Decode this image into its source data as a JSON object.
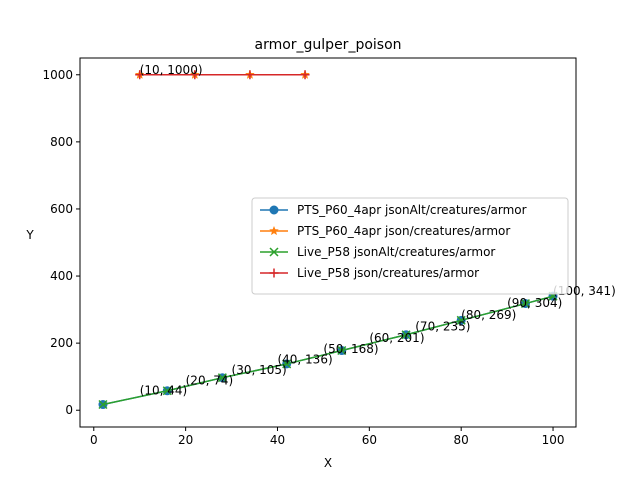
{
  "chart_data": {
    "type": "line",
    "title": "armor_gulper_poison",
    "xlabel": "X",
    "ylabel": "Y",
    "xlim": [
      -3,
      105
    ],
    "ylim": [
      -50,
      1050
    ],
    "xticks": [
      0,
      20,
      40,
      60,
      80,
      100
    ],
    "yticks": [
      0,
      200,
      400,
      600,
      800,
      1000
    ],
    "legend_position": "center-right",
    "grid": false,
    "series": [
      {
        "name": "PTS_P60_4apr jsonAlt/creatures/armor",
        "color": "#1f77b4",
        "marker": "circle",
        "x": [
          2,
          16,
          28,
          42,
          54,
          68,
          80,
          94,
          100
        ],
        "y": [
          17,
          58,
          97,
          138,
          178,
          225,
          268,
          318,
          340
        ]
      },
      {
        "name": "PTS_P60_4apr json/creatures/armor",
        "color": "#ff7f0e",
        "marker": "star",
        "x": [
          10,
          22,
          34,
          46
        ],
        "y": [
          1000,
          1000,
          1000,
          1000
        ]
      },
      {
        "name": "Live_P58 jsonAlt/creatures/armor",
        "color": "#2ca02c",
        "marker": "x",
        "x": [
          2,
          16,
          28,
          42,
          54,
          68,
          80,
          94,
          100
        ],
        "y": [
          17,
          58,
          97,
          138,
          178,
          225,
          268,
          318,
          340
        ]
      },
      {
        "name": "Live_P58 json/creatures/armor",
        "color": "#d62728",
        "marker": "plus",
        "x": [
          10,
          22,
          34,
          46
        ],
        "y": [
          1000,
          1000,
          1000,
          1000
        ]
      }
    ],
    "annotations": [
      {
        "text": "(10, 1000)",
        "x": 10,
        "y": 1000
      },
      {
        "text": "(10, 44)",
        "x": 10,
        "y": 44
      },
      {
        "text": "(20, 74)",
        "x": 20,
        "y": 74
      },
      {
        "text": "(30, 105)",
        "x": 30,
        "y": 105
      },
      {
        "text": "(40, 136)",
        "x": 40,
        "y": 136
      },
      {
        "text": "(50, 168)",
        "x": 50,
        "y": 168
      },
      {
        "text": "(60, 201)",
        "x": 60,
        "y": 201
      },
      {
        "text": "(70, 235)",
        "x": 70,
        "y": 235
      },
      {
        "text": "(80, 269)",
        "x": 80,
        "y": 269
      },
      {
        "text": "(90, 304)",
        "x": 90,
        "y": 304
      },
      {
        "text": "(100, 341)",
        "x": 100,
        "y": 341
      }
    ]
  }
}
